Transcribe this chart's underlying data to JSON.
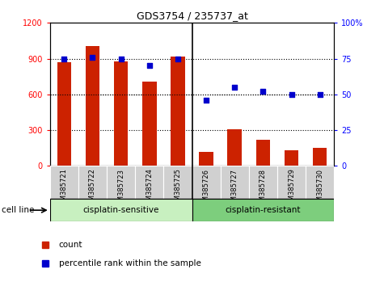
{
  "title": "GDS3754 / 235737_at",
  "samples": [
    "GSM385721",
    "GSM385722",
    "GSM385723",
    "GSM385724",
    "GSM385725",
    "GSM385726",
    "GSM385727",
    "GSM385728",
    "GSM385729",
    "GSM385730"
  ],
  "counts": [
    870,
    1005,
    880,
    710,
    920,
    120,
    310,
    220,
    130,
    150
  ],
  "percentile_ranks": [
    75,
    76,
    75,
    70,
    75,
    46,
    55,
    52,
    50,
    50
  ],
  "bar_color": "#cc2200",
  "dot_color": "#0000cc",
  "left_ylim": [
    0,
    1200
  ],
  "right_ylim": [
    0,
    100
  ],
  "left_yticks": [
    0,
    300,
    600,
    900,
    1200
  ],
  "right_yticks": [
    0,
    25,
    50,
    75,
    100
  ],
  "right_yticklabels": [
    "0",
    "25",
    "50",
    "75",
    "100%"
  ],
  "grid_values": [
    300,
    600,
    900
  ],
  "sensitive_color": "#c8f0c0",
  "resistant_color": "#7dce7d",
  "tick_bg_color": "#d0d0d0",
  "n_sensitive": 5,
  "n_resistant": 5,
  "bar_width": 0.5
}
